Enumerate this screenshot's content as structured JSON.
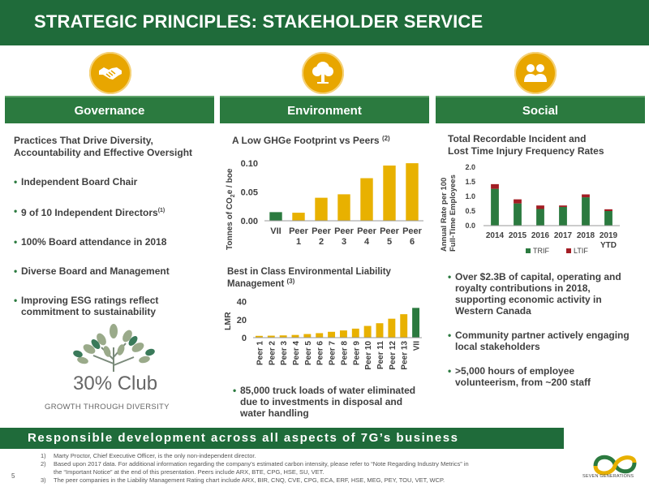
{
  "header": {
    "title": "STRATEGIC PRINCIPLES: STAKEHOLDER SERVICE"
  },
  "pillars": {
    "governance": "Governance",
    "environment": "Environment",
    "social": "Social"
  },
  "icons": {
    "governance": "handshake-icon",
    "environment": "tree-icon",
    "social": "people-icon",
    "accent_color": "#e8a600"
  },
  "governance": {
    "heading_line1": "Practices That Drive Diversity,",
    "heading_line2": "Accountability and Effective Oversight",
    "bullets": [
      "Independent Board Chair",
      "9 of 10 Independent Directors",
      "100% Board attendance in 2018",
      "Diverse Board and Management",
      "Improving ESG ratings reflect",
      "commitment to sustainability"
    ],
    "bullet2_sup": "(1)",
    "club_name": "30% Club",
    "club_tagline": "GROWTH THROUGH DIVERSITY"
  },
  "environment": {
    "water_bullet": [
      "85,000 truck loads of water eliminated",
      "due to investments in disposal and",
      "water handling"
    ]
  },
  "social": {
    "bullets": [
      [
        "Over $2.3B of capital, operating and",
        "royalty contributions in 2018,",
        "supporting economic activity in",
        "Western Canada"
      ],
      [
        "Community partner actively engaging",
        "local stakeholders"
      ],
      [
        ">5,000 hours of employee",
        "volunteerism, from ~200 staff"
      ]
    ]
  },
  "banner": "Responsible development across all aspects of 7G’s business",
  "footnotes": [
    [
      "1)",
      "Marty Proctor, Chief Executive Officer, is the only non-independent director."
    ],
    [
      "2)",
      "Based upon 2017 data. For additional information regarding the company’s estimated carbon intensity, please refer to “Note Regarding Industry Metrics” in"
    ],
    [
      "",
      "the “Important Notice” at the end of this presentation. Peers include ARX, BTE, CPG, HSE, SU, VET."
    ],
    [
      "3)",
      "The peer companies in the Liability Management Rating chart include ARX, BIR, CNQ, CVE, CPG, ECA, ERF, HSE, MEG, PEY, TOU, VET, WCP."
    ]
  ],
  "page_number": "5",
  "company_logo_text": "SEVEN GENERATIONS",
  "chart_data": [
    {
      "type": "bar",
      "title": "A Low GHGe Footprint vs Peers",
      "title_sup": "(2)",
      "ylabel": "Tonnes of CO2e / boe",
      "categories": [
        "VII",
        "Peer 1",
        "Peer 2",
        "Peer 3",
        "Peer 4",
        "Peer 5",
        "Peer 6"
      ],
      "values": [
        0.015,
        0.014,
        0.04,
        0.046,
        0.074,
        0.096,
        0.1
      ],
      "highlight_index": 0,
      "colors": {
        "highlight": "#2b7a3f",
        "peer": "#e8b100"
      },
      "ylim": [
        0,
        0.11
      ],
      "yticks": [
        "0.00",
        "0.05",
        "0.10"
      ],
      "ytick_values": [
        0,
        0.05,
        0.1
      ],
      "grid": false
    },
    {
      "type": "bar",
      "title_line1": "Best in Class Environmental Liability",
      "title_line2": "Management",
      "title_sup": "(3)",
      "ylabel": "LMR",
      "categories": [
        "Peer 1",
        "Peer 2",
        "Peer 3",
        "Peer 4",
        "Peer 5",
        "Peer 6",
        "Peer 7",
        "Peer 8",
        "Peer 9",
        "Peer 10",
        "Peer 11",
        "Peer 12",
        "Peer 13",
        "VII"
      ],
      "values": [
        2,
        2.2,
        2.5,
        3,
        4,
        5,
        6.5,
        8,
        10,
        13,
        16,
        21,
        26,
        33
      ],
      "highlight_index": 13,
      "colors": {
        "highlight": "#2b7a3f",
        "peer": "#e8b100"
      },
      "ylim": [
        0,
        45
      ],
      "yticks": [
        "0",
        "20",
        "40"
      ],
      "ytick_values": [
        0,
        20,
        40
      ],
      "grid": false
    },
    {
      "type": "bar",
      "stacked": true,
      "title_line1": "Total Recordable Incident and",
      "title_line2": "Lost Time Injury Frequency Rates",
      "ylabel_line1": "Annual Rate per 100",
      "ylabel_line2": "Full-Time Employees",
      "categories": [
        "2014",
        "2015",
        "2016",
        "2017",
        "2018",
        "2019 YTD"
      ],
      "category_lines": [
        [
          "2014"
        ],
        [
          "2015"
        ],
        [
          "2016"
        ],
        [
          "2017"
        ],
        [
          "2018"
        ],
        [
          "2019",
          "YTD"
        ]
      ],
      "series": [
        {
          "name": "TRIF",
          "values": [
            1.26,
            0.76,
            0.57,
            0.64,
            0.97,
            0.5
          ],
          "color": "#2b7a3f"
        },
        {
          "name": "LTIF",
          "values": [
            0.16,
            0.14,
            0.12,
            0.05,
            0.1,
            0.06
          ],
          "color": "#a31d24"
        }
      ],
      "ylim": [
        0,
        2.0
      ],
      "yticks": [
        "0.0",
        "0.5",
        "1.0",
        "1.5",
        "2.0"
      ],
      "ytick_values": [
        0,
        0.5,
        1.0,
        1.5,
        2.0
      ],
      "legend": "bottom",
      "grid": false
    }
  ]
}
